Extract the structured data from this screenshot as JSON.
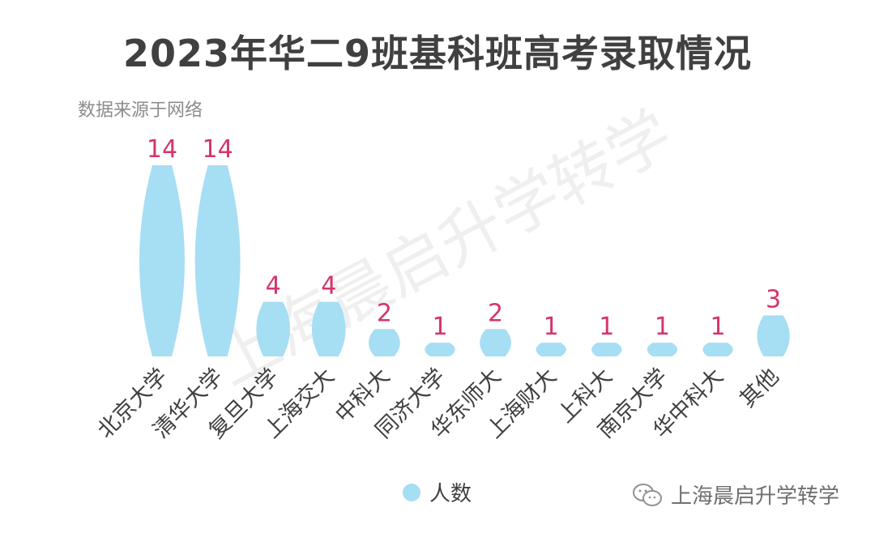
{
  "chart_data": {
    "type": "bar",
    "title": "2023年华二9班基科班高考录取情况",
    "subtitle": "数据来源于网络",
    "categories": [
      "北京大学",
      "清华大学",
      "复旦大学",
      "上海交大",
      "中科大",
      "同济大学",
      "华东师大",
      "上海财大",
      "上科大",
      "南京大学",
      "华中科大",
      "其他"
    ],
    "series": [
      {
        "name": "人数",
        "values": [
          14,
          14,
          4,
          4,
          2,
          1,
          2,
          1,
          1,
          1,
          1,
          3
        ]
      }
    ],
    "ylim": [
      0,
      14
    ],
    "grid": false,
    "legend": "bottom-center",
    "bar_color": "#a6def4",
    "label_color": "#d6336c"
  },
  "watermark": "上海晨启升学转学",
  "source": {
    "icon": "wechat-icon",
    "text": "上海晨启升学转学"
  }
}
